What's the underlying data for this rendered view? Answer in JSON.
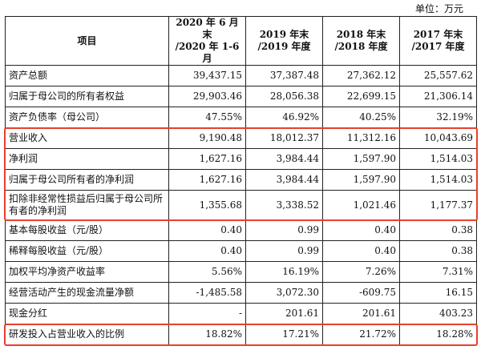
{
  "unit_label": "单位：万元",
  "headers": [
    [
      "项目"
    ],
    [
      "2020 年 6 月末",
      "/2020 年 1-6 月"
    ],
    [
      "2019 年末",
      "/2019 年度"
    ],
    [
      "2018 年末",
      "/2018 年度"
    ],
    [
      "2017 年末",
      "/2017 年度"
    ]
  ],
  "rows": [
    {
      "label": "资产总额",
      "values": [
        "39,437.15",
        "37,387.48",
        "27,362.12",
        "25,557.62"
      ]
    },
    {
      "label": "归属于母公司的所有者权益",
      "values": [
        "29,903.46",
        "28,056.38",
        "22,699.15",
        "21,306.14"
      ]
    },
    {
      "label": "资产负债率（母公司）",
      "values": [
        "47.55%",
        "46.92%",
        "40.25%",
        "32.19%"
      ]
    },
    {
      "label": "营业收入",
      "values": [
        "9,190.48",
        "18,012.37",
        "11,312.16",
        "10,043.69"
      ]
    },
    {
      "label": "净利润",
      "values": [
        "1,627.16",
        "3,984.44",
        "1,597.90",
        "1,514.03"
      ]
    },
    {
      "label": "归属于母公司所有者的净利润",
      "values": [
        "1,627.16",
        "3,984.44",
        "1,597.90",
        "1,514.03"
      ]
    },
    {
      "label": "扣除非经常性损益后归属于母公司所有者的净利润",
      "values": [
        "1,355.68",
        "3,338.52",
        "1,021.46",
        "1,177.37"
      ]
    },
    {
      "label": "基本每股收益（元/股）",
      "values": [
        "0.40",
        "0.99",
        "0.40",
        "0.38"
      ]
    },
    {
      "label": "稀释每股收益（元/股）",
      "values": [
        "0.40",
        "0.99",
        "0.40",
        "0.38"
      ]
    },
    {
      "label": "加权平均净资产收益率",
      "values": [
        "5.56%",
        "16.19%",
        "7.26%",
        "7.31%"
      ]
    },
    {
      "label": "经营活动产生的现金流量净额",
      "values": [
        "-1,485.58",
        "3,072.30",
        "-609.75",
        "16.15"
      ]
    },
    {
      "label": "现金分红",
      "values": [
        "-",
        "201.61",
        "201.61",
        "403.23"
      ]
    },
    {
      "label": "研发投入占营业收入的比例",
      "values": [
        "18.82%",
        "17.21%",
        "21.72%",
        "18.28%"
      ]
    }
  ],
  "highlight_color": "#e8402e"
}
